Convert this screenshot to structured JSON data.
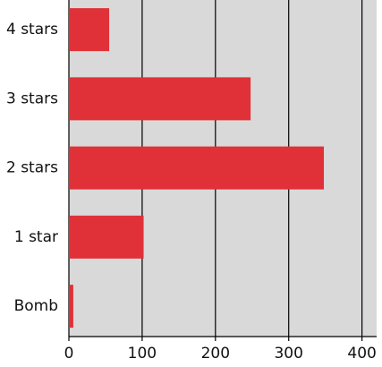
{
  "chart_data": {
    "type": "barh",
    "categories": [
      "4 stars",
      "3 stars",
      "2 stars",
      "1 star",
      "Bomb"
    ],
    "values": [
      55,
      248,
      348,
      102,
      6
    ],
    "color": "#e03138",
    "xlim": [
      0,
      420
    ],
    "xticks": [
      0,
      100,
      200,
      300,
      400
    ],
    "grid": true
  }
}
